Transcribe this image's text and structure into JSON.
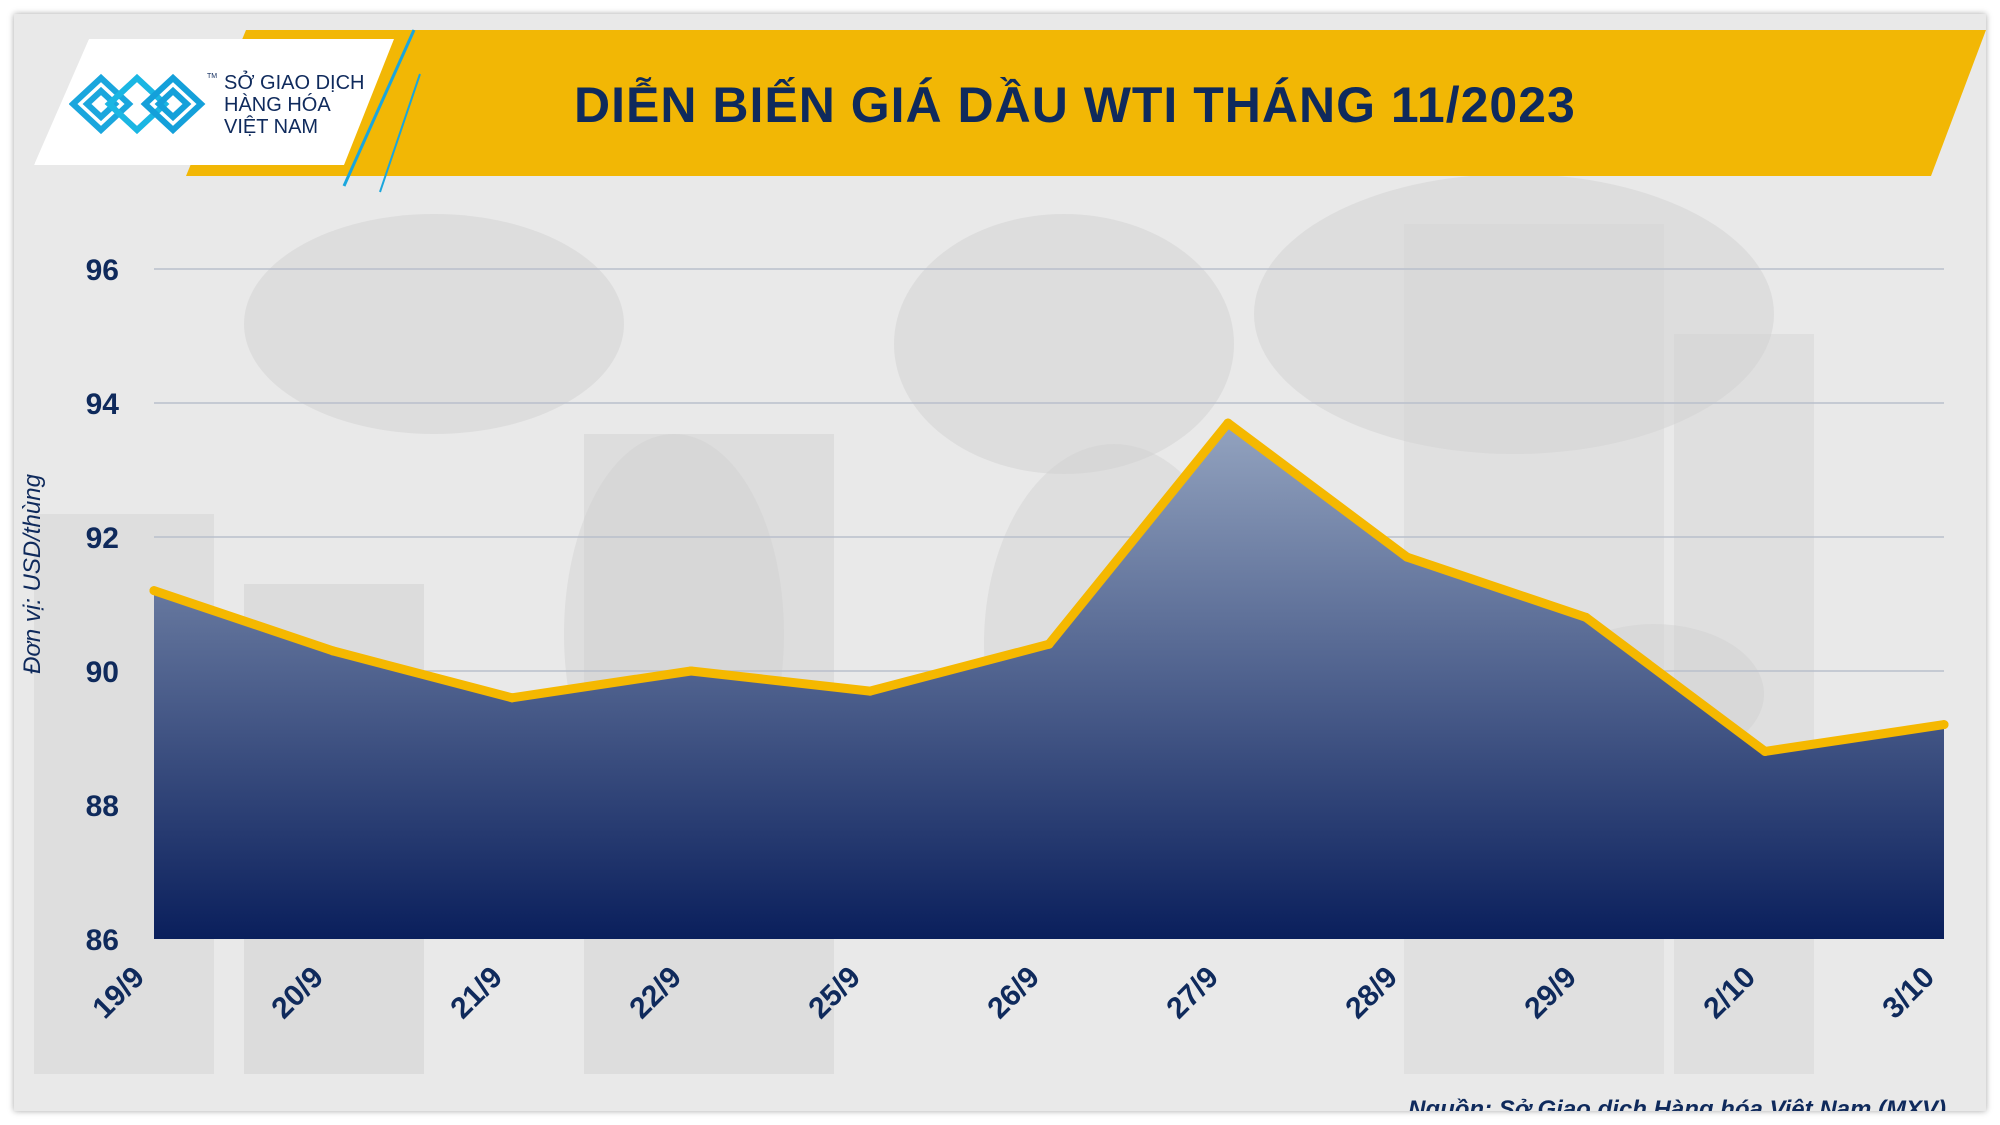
{
  "header": {
    "title": "DIỄN BIẾN GIÁ DẦU WTI THÁNG 11/2023",
    "logo_lines": [
      "SỞ GIAO DỊCH",
      "HÀNG HÓA",
      "VIỆT NAM"
    ],
    "logo_tm": "TM"
  },
  "chart_data": {
    "type": "area",
    "title": "DIỄN BIẾN GIÁ DẦU WTI THÁNG 11/2023",
    "ylabel": "Đơn vị: USD/thùng",
    "xlabel": "",
    "categories": [
      "19/9",
      "20/9",
      "21/9",
      "22/9",
      "25/9",
      "26/9",
      "27/9",
      "28/9",
      "29/9",
      "2/10",
      "3/10"
    ],
    "values": [
      91.2,
      90.3,
      89.6,
      90.0,
      89.7,
      90.4,
      93.7,
      91.7,
      90.8,
      88.8,
      89.2
    ],
    "ylim": [
      86,
      96
    ],
    "yticks": [
      86,
      88,
      90,
      92,
      94,
      96
    ],
    "grid": true,
    "line_color": "#f5b800",
    "fill_top_color": "#93a3bf",
    "fill_bottom_color": "#0a1f5c"
  },
  "footer": {
    "source": "Nguồn: Sở Giao dịch Hàng hóa Việt Nam (MXV)"
  }
}
